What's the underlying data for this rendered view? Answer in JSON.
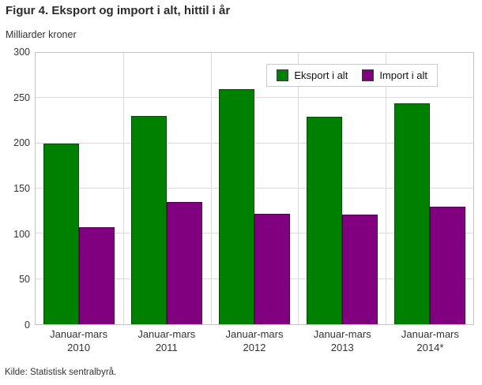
{
  "title": "Figur 4. Eksport og import i alt, hittil i år",
  "ylabel": "Milliarder kroner",
  "source": "Kilde: Statistisk sentralbyrå.",
  "chart_data": {
    "type": "bar",
    "title": "Figur 4. Eksport og import i alt, hittil i år",
    "xlabel": "",
    "ylabel": "Milliarder kroner",
    "categories": [
      "Januar-mars 2010",
      "Januar-mars 2011",
      "Januar-mars 2012",
      "Januar-mars 2013",
      "Januar-mars 2014*"
    ],
    "series": [
      {
        "name": "Eksport i alt",
        "color": "#008000",
        "values": [
          200,
          230,
          260,
          229,
          244
        ]
      },
      {
        "name": "Import i alt",
        "color": "#800080",
        "values": [
          107,
          135,
          122,
          121,
          130
        ]
      }
    ],
    "ylim": [
      0,
      300
    ],
    "yticks": [
      0,
      50,
      100,
      150,
      200,
      250,
      300
    ],
    "grid": true,
    "legend_position": "top-right",
    "colors": {
      "plot_border": "#c4c4c4",
      "gridline": "#dadada",
      "text": "#333333"
    }
  }
}
